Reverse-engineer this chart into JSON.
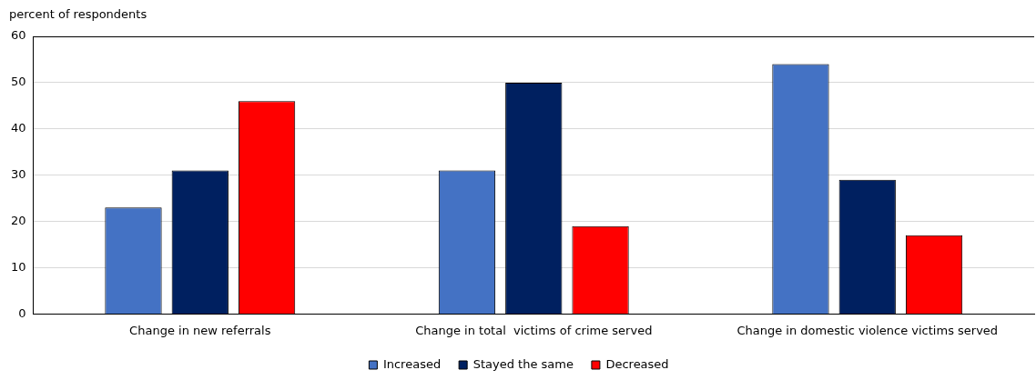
{
  "chart_data": {
    "type": "bar",
    "ylabel": "percent of respondents",
    "categories": [
      "Change in new referrals",
      "Change in total  victims of crime served",
      "Change in domestic violence victims served"
    ],
    "series": [
      {
        "name": "Increased",
        "color": "#4472c4",
        "values": [
          23,
          31,
          54
        ]
      },
      {
        "name": "Stayed the same",
        "color": "#002060",
        "values": [
          31,
          50,
          29
        ]
      },
      {
        "name": "Decreased",
        "color": "#ff0000",
        "values": [
          46,
          19,
          17
        ]
      }
    ],
    "ylim": [
      0,
      60
    ],
    "yticks": [
      0,
      10,
      20,
      30,
      40,
      50,
      60
    ],
    "grid": "y",
    "legend": "bottom"
  }
}
